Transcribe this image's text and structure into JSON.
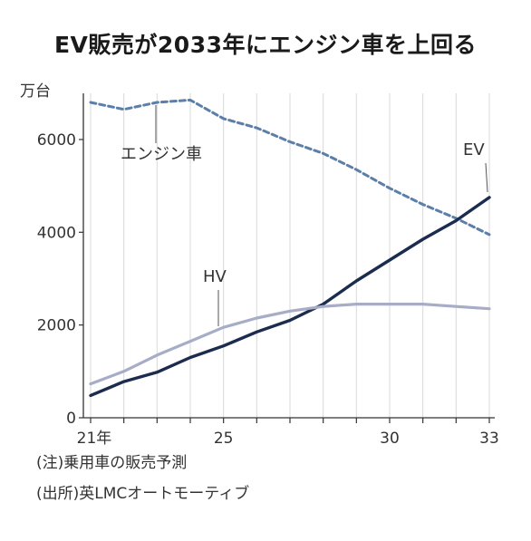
{
  "chart_data": {
    "type": "line",
    "title": "EV販売が2033年にエンジン車を上回る",
    "ylabel": "万台",
    "xlabel": "",
    "x": [
      21,
      22,
      23,
      24,
      25,
      26,
      27,
      28,
      29,
      30,
      31,
      32,
      33
    ],
    "xlim": [
      21,
      33
    ],
    "ylim": [
      0,
      6800
    ],
    "xticks": [
      {
        "value": 21,
        "label": "21年"
      },
      {
        "value": 25,
        "label": "25"
      },
      {
        "value": 30,
        "label": "30"
      },
      {
        "value": 33,
        "label": "33"
      }
    ],
    "yticks": [
      {
        "value": 0,
        "label": "0"
      },
      {
        "value": 2000,
        "label": "2000"
      },
      {
        "value": 4000,
        "label": "4000"
      },
      {
        "value": 6000,
        "label": "6000"
      }
    ],
    "grid": "vertical",
    "series": [
      {
        "name": "エンジン車",
        "style": "dashed",
        "color": "#5b7fa8",
        "values": [
          6800,
          6650,
          6800,
          6850,
          6450,
          6250,
          5950,
          5700,
          5350,
          4950,
          4600,
          4300,
          3950
        ]
      },
      {
        "name": "EV",
        "style": "solid",
        "color": "#1b2c4f",
        "values": [
          480,
          780,
          980,
          1300,
          1550,
          1850,
          2100,
          2450,
          2950,
          3400,
          3850,
          4250,
          4750
        ]
      },
      {
        "name": "HV",
        "style": "solid",
        "color": "#a7adc6",
        "values": [
          730,
          1000,
          1350,
          1650,
          1950,
          2150,
          2300,
          2400,
          2450,
          2450,
          2450,
          2400,
          2350
        ]
      }
    ]
  },
  "notes": {
    "note1": "(注)乗用車の販売予測",
    "source": "(出所)英LMCオートモーティブ"
  }
}
